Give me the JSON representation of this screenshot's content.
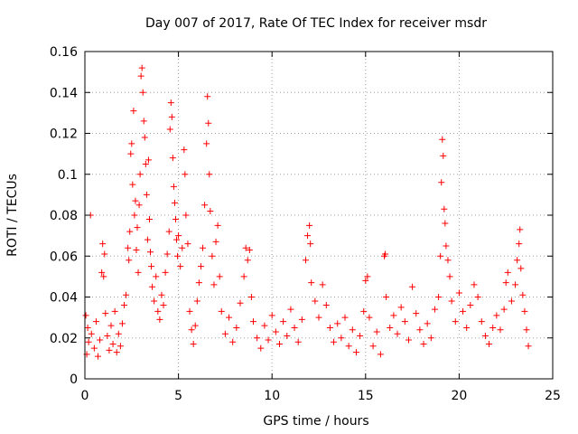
{
  "chart_data": {
    "type": "scatter",
    "title": "Day 007 of 2017, Rate Of TEC Index for receiver msdr",
    "xlabel": "GPS time / hours",
    "ylabel": "ROTI / TECUs",
    "xlim": [
      0,
      25
    ],
    "ylim": [
      0,
      0.16
    ],
    "xticks": [
      0,
      5,
      10,
      15,
      20,
      25
    ],
    "xtick_labels": [
      "0",
      "5",
      "10",
      "15",
      "20",
      "25"
    ],
    "yticks": [
      0,
      0.02,
      0.04,
      0.06,
      0.08,
      0.1,
      0.12,
      0.14,
      0.16
    ],
    "ytick_labels": [
      "0",
      "0.02",
      "0.04",
      "0.06",
      "0.08",
      "0.1",
      "0.12",
      "0.14",
      "0.16"
    ],
    "grid": true,
    "marker": "plus",
    "color": "#ff0000",
    "series": [
      {
        "name": "ROTI",
        "points": [
          [
            0.05,
            0.031
          ],
          [
            0.1,
            0.012
          ],
          [
            0.15,
            0.025
          ],
          [
            0.2,
            0.018
          ],
          [
            0.3,
            0.08
          ],
          [
            0.35,
            0.022
          ],
          [
            0.5,
            0.015
          ],
          [
            0.6,
            0.028
          ],
          [
            0.7,
            0.011
          ],
          [
            0.8,
            0.019
          ],
          [
            0.9,
            0.052
          ],
          [
            0.95,
            0.066
          ],
          [
            1.0,
            0.05
          ],
          [
            1.05,
            0.061
          ],
          [
            1.1,
            0.032
          ],
          [
            1.2,
            0.021
          ],
          [
            1.3,
            0.014
          ],
          [
            1.4,
            0.026
          ],
          [
            1.5,
            0.017
          ],
          [
            1.6,
            0.033
          ],
          [
            1.7,
            0.013
          ],
          [
            1.8,
            0.022
          ],
          [
            1.9,
            0.016
          ],
          [
            2.0,
            0.027
          ],
          [
            2.1,
            0.036
          ],
          [
            2.2,
            0.041
          ],
          [
            2.3,
            0.064
          ],
          [
            2.35,
            0.058
          ],
          [
            2.4,
            0.072
          ],
          [
            2.45,
            0.11
          ],
          [
            2.5,
            0.115
          ],
          [
            2.55,
            0.095
          ],
          [
            2.6,
            0.131
          ],
          [
            2.65,
            0.08
          ],
          [
            2.7,
            0.087
          ],
          [
            2.75,
            0.063
          ],
          [
            2.8,
            0.074
          ],
          [
            2.85,
            0.052
          ],
          [
            2.9,
            0.085
          ],
          [
            2.95,
            0.1
          ],
          [
            3.0,
            0.148
          ],
          [
            3.05,
            0.152
          ],
          [
            3.1,
            0.14
          ],
          [
            3.15,
            0.126
          ],
          [
            3.2,
            0.118
          ],
          [
            3.25,
            0.105
          ],
          [
            3.3,
            0.09
          ],
          [
            3.35,
            0.068
          ],
          [
            3.4,
            0.107
          ],
          [
            3.45,
            0.078
          ],
          [
            3.5,
            0.062
          ],
          [
            3.55,
            0.055
          ],
          [
            3.6,
            0.045
          ],
          [
            3.7,
            0.038
          ],
          [
            3.8,
            0.05
          ],
          [
            3.9,
            0.033
          ],
          [
            4.0,
            0.029
          ],
          [
            4.1,
            0.041
          ],
          [
            4.2,
            0.036
          ],
          [
            4.3,
            0.052
          ],
          [
            4.4,
            0.061
          ],
          [
            4.5,
            0.072
          ],
          [
            4.55,
            0.122
          ],
          [
            4.6,
            0.135
          ],
          [
            4.65,
            0.128
          ],
          [
            4.7,
            0.108
          ],
          [
            4.75,
            0.094
          ],
          [
            4.8,
            0.086
          ],
          [
            4.85,
            0.078
          ],
          [
            4.9,
            0.068
          ],
          [
            4.95,
            0.06
          ],
          [
            5.0,
            0.07
          ],
          [
            5.1,
            0.055
          ],
          [
            5.2,
            0.064
          ],
          [
            5.3,
            0.112
          ],
          [
            5.35,
            0.1
          ],
          [
            5.4,
            0.08
          ],
          [
            5.5,
            0.066
          ],
          [
            5.6,
            0.033
          ],
          [
            5.7,
            0.024
          ],
          [
            5.8,
            0.017
          ],
          [
            5.9,
            0.026
          ],
          [
            6.0,
            0.038
          ],
          [
            6.1,
            0.047
          ],
          [
            6.2,
            0.055
          ],
          [
            6.3,
            0.064
          ],
          [
            6.4,
            0.085
          ],
          [
            6.5,
            0.115
          ],
          [
            6.55,
            0.138
          ],
          [
            6.6,
            0.125
          ],
          [
            6.65,
            0.1
          ],
          [
            6.7,
            0.082
          ],
          [
            6.8,
            0.06
          ],
          [
            6.9,
            0.046
          ],
          [
            7.0,
            0.067
          ],
          [
            7.1,
            0.075
          ],
          [
            7.2,
            0.05
          ],
          [
            7.3,
            0.033
          ],
          [
            7.5,
            0.022
          ],
          [
            7.7,
            0.03
          ],
          [
            7.9,
            0.018
          ],
          [
            8.1,
            0.025
          ],
          [
            8.3,
            0.037
          ],
          [
            8.5,
            0.05
          ],
          [
            8.6,
            0.064
          ],
          [
            8.7,
            0.058
          ],
          [
            8.8,
            0.063
          ],
          [
            8.9,
            0.04
          ],
          [
            9.0,
            0.028
          ],
          [
            9.2,
            0.02
          ],
          [
            9.4,
            0.015
          ],
          [
            9.6,
            0.026
          ],
          [
            9.8,
            0.019
          ],
          [
            10.0,
            0.031
          ],
          [
            10.2,
            0.023
          ],
          [
            10.4,
            0.017
          ],
          [
            10.6,
            0.028
          ],
          [
            10.8,
            0.021
          ],
          [
            11.0,
            0.034
          ],
          [
            11.2,
            0.025
          ],
          [
            11.4,
            0.018
          ],
          [
            11.6,
            0.029
          ],
          [
            11.8,
            0.058
          ],
          [
            11.9,
            0.07
          ],
          [
            12.0,
            0.075
          ],
          [
            12.05,
            0.066
          ],
          [
            12.1,
            0.047
          ],
          [
            12.3,
            0.038
          ],
          [
            12.5,
            0.03
          ],
          [
            12.7,
            0.046
          ],
          [
            12.9,
            0.036
          ],
          [
            13.1,
            0.025
          ],
          [
            13.3,
            0.018
          ],
          [
            13.5,
            0.027
          ],
          [
            13.7,
            0.02
          ],
          [
            13.9,
            0.03
          ],
          [
            14.1,
            0.016
          ],
          [
            14.3,
            0.024
          ],
          [
            14.5,
            0.013
          ],
          [
            14.7,
            0.021
          ],
          [
            14.9,
            0.033
          ],
          [
            15.0,
            0.048
          ],
          [
            15.1,
            0.05
          ],
          [
            15.2,
            0.03
          ],
          [
            15.4,
            0.016
          ],
          [
            15.6,
            0.023
          ],
          [
            15.8,
            0.012
          ],
          [
            16.0,
            0.06
          ],
          [
            16.05,
            0.061
          ],
          [
            16.1,
            0.04
          ],
          [
            16.3,
            0.025
          ],
          [
            16.5,
            0.031
          ],
          [
            16.7,
            0.022
          ],
          [
            16.9,
            0.035
          ],
          [
            17.1,
            0.028
          ],
          [
            17.3,
            0.019
          ],
          [
            17.5,
            0.045
          ],
          [
            17.7,
            0.032
          ],
          [
            17.9,
            0.024
          ],
          [
            18.1,
            0.017
          ],
          [
            18.3,
            0.027
          ],
          [
            18.5,
            0.02
          ],
          [
            18.7,
            0.034
          ],
          [
            18.9,
            0.04
          ],
          [
            19.0,
            0.06
          ],
          [
            19.05,
            0.096
          ],
          [
            19.1,
            0.117
          ],
          [
            19.15,
            0.109
          ],
          [
            19.2,
            0.083
          ],
          [
            19.25,
            0.076
          ],
          [
            19.3,
            0.065
          ],
          [
            19.4,
            0.058
          ],
          [
            19.5,
            0.05
          ],
          [
            19.6,
            0.038
          ],
          [
            19.8,
            0.028
          ],
          [
            20.0,
            0.042
          ],
          [
            20.2,
            0.033
          ],
          [
            20.4,
            0.025
          ],
          [
            20.6,
            0.036
          ],
          [
            20.8,
            0.046
          ],
          [
            21.0,
            0.04
          ],
          [
            21.2,
            0.028
          ],
          [
            21.4,
            0.021
          ],
          [
            21.6,
            0.017
          ],
          [
            21.8,
            0.025
          ],
          [
            22.0,
            0.031
          ],
          [
            22.2,
            0.024
          ],
          [
            22.4,
            0.034
          ],
          [
            22.5,
            0.047
          ],
          [
            22.6,
            0.052
          ],
          [
            22.8,
            0.038
          ],
          [
            23.0,
            0.046
          ],
          [
            23.1,
            0.058
          ],
          [
            23.2,
            0.066
          ],
          [
            23.25,
            0.073
          ],
          [
            23.3,
            0.054
          ],
          [
            23.4,
            0.041
          ],
          [
            23.5,
            0.033
          ],
          [
            23.6,
            0.024
          ],
          [
            23.7,
            0.016
          ]
        ]
      }
    ]
  }
}
